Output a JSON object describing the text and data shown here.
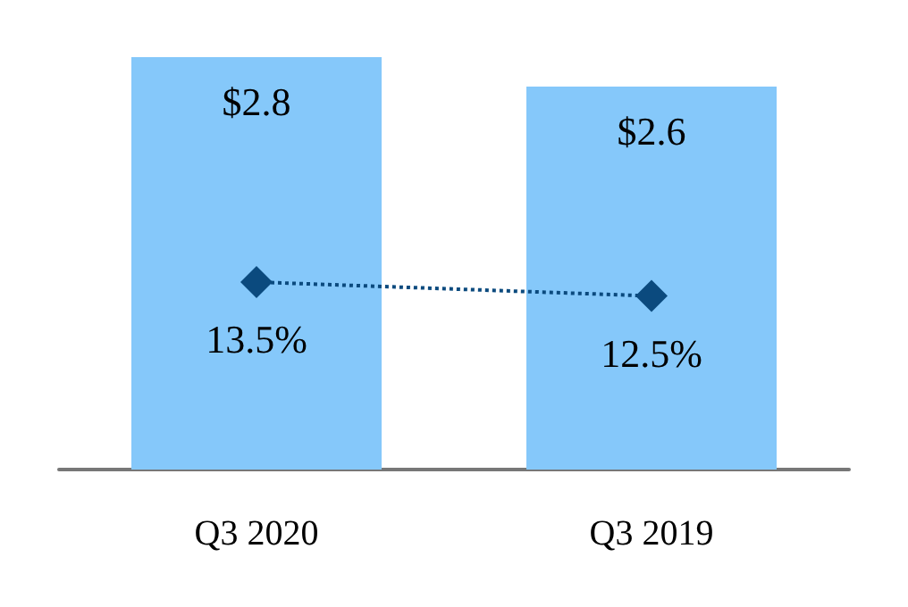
{
  "chart_data": {
    "type": "bar",
    "categories": [
      "Q3 2020",
      "Q3 2019"
    ],
    "tick_labels": "x",
    "series": [
      {
        "color": "#85c8fa",
        "values": [
          2.8,
          2.6
        ],
        "value_labels": [
          "$2.8",
          "$2.6"
        ]
      },
      {
        "type": "line",
        "axis": "y2",
        "color": "#0b4a7e",
        "values": [
          13.5,
          12.5
        ],
        "value_labels": [
          "13.5%",
          "12.5%"
        ],
        "marker": "diamond",
        "line_style": "dotted"
      }
    ]
  }
}
